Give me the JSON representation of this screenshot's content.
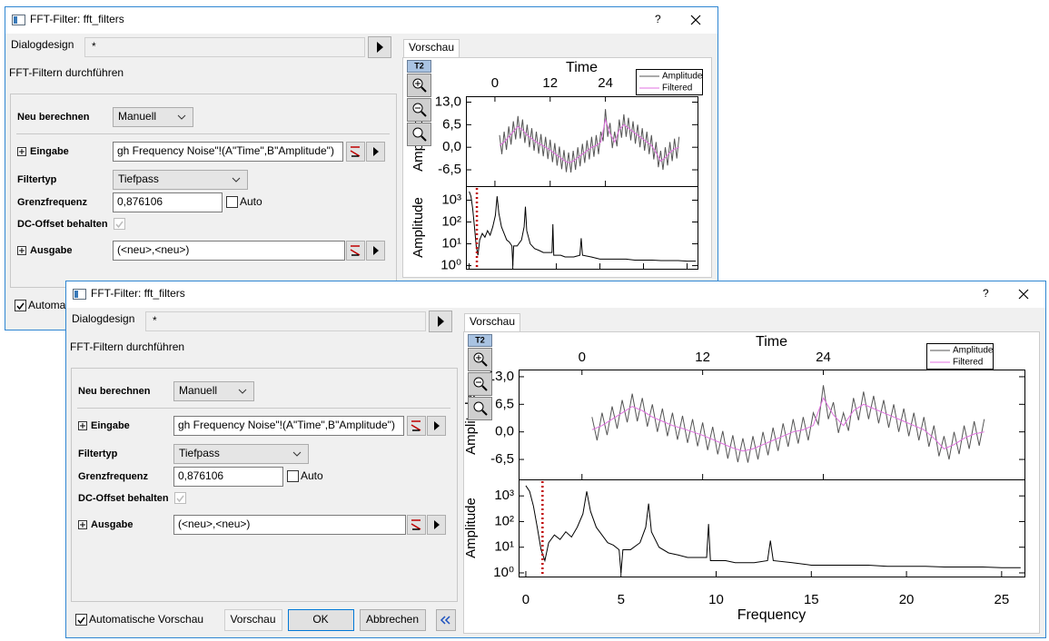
{
  "window": {
    "title": "FFT-Filter: fft_filters",
    "help": "?"
  },
  "dialog": {
    "design_label": "Dialogdesign",
    "design_value": "*",
    "heading": "FFT-Filtern durchführen",
    "recalc_label": "Neu berechnen",
    "recalc_value": "Manuell",
    "input_label": "Eingabe",
    "input_value": "gh Frequency Noise\"!(A\"Time\",B\"Amplitude\")",
    "filter_label": "Filtertyp",
    "filter_value": "Tiefpass",
    "cutoff_label": "Grenzfrequenz",
    "cutoff_value": "0,876106",
    "auto_label": "Auto",
    "dc_label": "DC-Offset behalten",
    "output_label": "Ausgabe",
    "output_value": "(<neu>,<neu>)",
    "auto_preview_label": "Automatische Vorschau",
    "buttons": [
      "Vorschau",
      "OK",
      "Abbrechen"
    ]
  },
  "preview": {
    "tab": "Vorschau",
    "toolbar_label": "T2"
  },
  "chart_data": [
    {
      "type": "line",
      "xlabel": "Time",
      "ylabel": "Amplitude",
      "xlim": [
        -6.3,
        44
      ],
      "xticks": [
        0,
        12,
        24
      ],
      "ylim": [
        -11.2,
        14.7
      ],
      "yticks": [
        {
          "value": 13,
          "label": "13,0"
        },
        {
          "value": 6.5,
          "label": "6,5"
        },
        {
          "value": 0,
          "label": "0,0"
        },
        {
          "value": -6.5,
          "label": "-6,5"
        }
      ],
      "series": [
        {
          "name": "Amplitude",
          "color": "#555555",
          "x": [
            1,
            1.5,
            2,
            2.5,
            3,
            3.5,
            4,
            4.5,
            5,
            5.5,
            6,
            6.5,
            7,
            7.5,
            8,
            8.5,
            9,
            9.5,
            10,
            10.5,
            11,
            11.5,
            12,
            12.5,
            13,
            13.5,
            14,
            14.5,
            15,
            15.5,
            16,
            16.5,
            17,
            17.5,
            18,
            18.5,
            19,
            19.5,
            20,
            20.5,
            21,
            21.5,
            22,
            22.5,
            23,
            23.5,
            24,
            24.5,
            25,
            25.5,
            26,
            26.5,
            27,
            27.5,
            28,
            28.5,
            29,
            29.5,
            30,
            30.5,
            31,
            31.5,
            32,
            32.5,
            33,
            33.5,
            34,
            34.5,
            35,
            35.5,
            36,
            36.5,
            37,
            37.5,
            38,
            38.5,
            39,
            39.5,
            40
          ],
          "values": [
            3.5,
            -2,
            4.5,
            -0.75,
            6,
            0.75,
            7.5,
            2.25,
            9,
            2.5,
            8,
            1.25,
            6.5,
            0,
            5.5,
            -1,
            4.5,
            -1.85,
            3.8,
            -2.6,
            3,
            -3.4,
            2.2,
            -4.3,
            1.2,
            -5.3,
            0.2,
            -6.3,
            -0.8,
            -7.15,
            -1.5,
            -7.25,
            -1,
            -6.5,
            0,
            -5.5,
            1,
            -4.5,
            2,
            -3.5,
            3,
            -2.75,
            3.5,
            -2,
            4.5,
            1.75,
            11,
            3,
            7,
            -0.25,
            4.5,
            0.25,
            8,
            2.75,
            9.5,
            3,
            8.5,
            2,
            7.5,
            1,
            6.5,
            0,
            5.5,
            -1,
            4.5,
            -2,
            3.5,
            -3.5,
            1.5,
            -5.75,
            -1,
            -6.5,
            0,
            -5.25,
            1.5,
            -4,
            2.5,
            -3.25,
            3
          ]
        },
        {
          "name": "Filtered",
          "color": "#e070e0",
          "x": [
            1,
            2,
            3,
            4,
            5,
            6,
            7,
            8,
            9,
            10,
            11,
            12,
            13,
            14,
            15,
            16,
            17,
            18,
            19,
            20,
            21,
            22,
            23,
            24,
            25,
            26,
            27,
            28,
            29,
            30,
            31,
            32,
            33,
            34,
            35,
            36,
            37,
            38,
            39,
            40
          ],
          "values": [
            0.5,
            1.5,
            3,
            4.5,
            6,
            5,
            3.5,
            2.5,
            1.5,
            0.8,
            0,
            -0.8,
            -1.8,
            -2.8,
            -3.8,
            -4.5,
            -4,
            -3,
            -2,
            -1,
            0,
            0.5,
            1.5,
            8,
            4,
            1.5,
            5,
            6.5,
            5.5,
            4.5,
            3.5,
            2.5,
            1.5,
            0.5,
            -1.5,
            -4,
            -3,
            -1.5,
            -0.5,
            0
          ]
        }
      ]
    },
    {
      "type": "line",
      "log_y": true,
      "xlabel": "Frequency",
      "ylabel": "Amplitude",
      "xlim": [
        -0.38,
        26.2
      ],
      "xticks": [
        0,
        5,
        10,
        15,
        20,
        25
      ],
      "ylim": [
        0.72,
        4400
      ],
      "yticks": [
        {
          "value": 1,
          "label": "10⁰"
        },
        {
          "value": 10,
          "label": "10¹"
        },
        {
          "value": 100,
          "label": "10²"
        },
        {
          "value": 1000,
          "label": "10³"
        }
      ],
      "color": "#000000",
      "cutoff": 0.876106,
      "cutoff_color": "#c00000",
      "x": [
        0,
        0.2,
        0.4,
        0.6,
        0.8,
        1.0,
        1.2,
        1.5,
        1.8,
        2.1,
        2.4,
        2.7,
        3.0,
        3.2,
        3.4,
        3.7,
        4.0,
        4.3,
        4.6,
        4.9,
        5.0,
        5.1,
        5.5,
        6.0,
        6.3,
        6.45,
        6.6,
        7.0,
        7.5,
        8.0,
        8.5,
        9.0,
        9.5,
        9.6,
        9.7,
        10.5,
        11.0,
        12.0,
        12.7,
        12.85,
        13.0,
        14.0,
        15.0,
        16.0,
        17.0,
        18.0,
        19.0,
        20.0,
        21.0,
        22.0,
        23.0,
        24.0,
        25.0,
        26.0
      ],
      "values": [
        2500,
        1500,
        400,
        60,
        8,
        3,
        15,
        30,
        20,
        40,
        25,
        60,
        200,
        1500,
        250,
        60,
        30,
        15,
        12,
        8,
        1,
        8,
        8,
        15,
        60,
        500,
        40,
        10,
        6,
        5,
        4,
        4,
        4,
        80,
        3,
        3,
        2.5,
        2.5,
        3,
        18,
        3,
        2.5,
        2,
        2,
        2,
        2,
        1.8,
        1.8,
        1.8,
        1.7,
        1.7,
        1.7,
        1.6,
        1.6
      ]
    }
  ]
}
